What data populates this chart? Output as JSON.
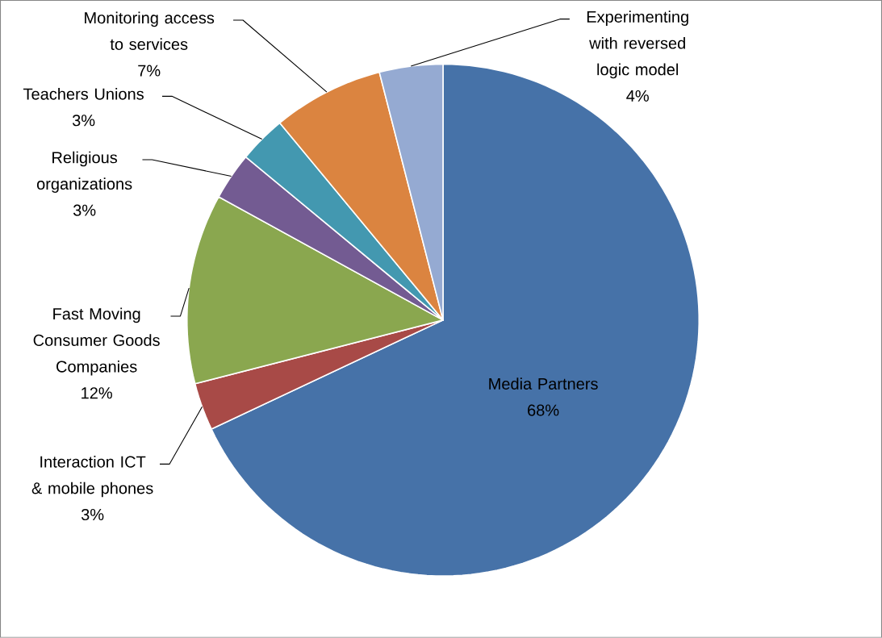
{
  "chart_data": {
    "type": "pie",
    "categories": [
      "Media Partners",
      "Interaction ICT & mobile phones",
      "Fast Moving Consumer Goods Companies",
      "Religious organizations",
      "Teachers Unions",
      "Monitoring access to services",
      "Experimenting with reversed logic model"
    ],
    "values": [
      68,
      3,
      12,
      3,
      3,
      7,
      4
    ],
    "value_labels": [
      "68%",
      "3%",
      "12%",
      "3%",
      "3%",
      "7%",
      "4%"
    ],
    "colors": [
      "#4672a8",
      "#a84a47",
      "#8aa74f",
      "#735b92",
      "#4398b0",
      "#db8440",
      "#95aad2"
    ]
  }
}
